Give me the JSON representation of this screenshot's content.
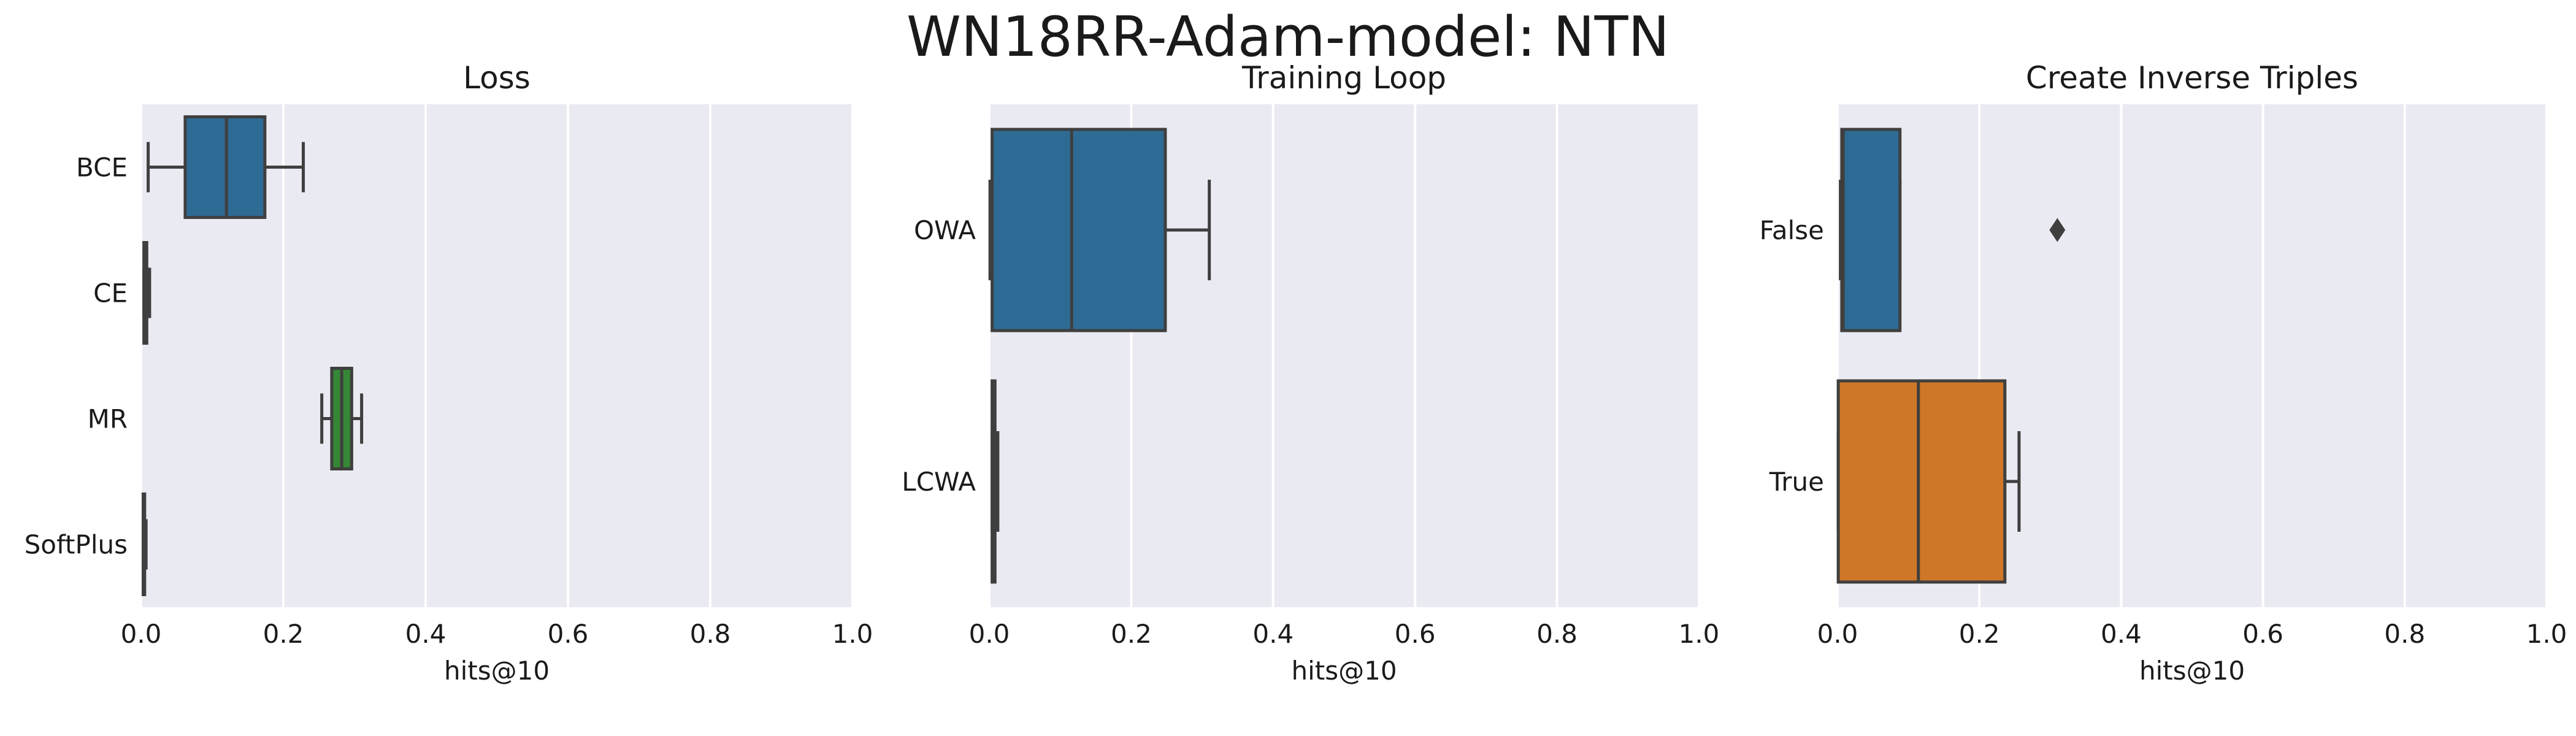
{
  "title": "WN18RR-Adam-model: NTN",
  "colors": {
    "background": "#eaeaf2",
    "grid": "#ffffff",
    "line": "#3f3f3f"
  },
  "chart_data": [
    {
      "type": "box",
      "orientation": "horizontal",
      "title": "Loss",
      "xlabel": "hits@10",
      "xlim": [
        0.0,
        1.0
      ],
      "xticks": [
        "0.0",
        "0.2",
        "0.4",
        "0.6",
        "0.8",
        "1.0"
      ],
      "categories": [
        "BCE",
        "CE",
        "MR",
        "SoftPlus"
      ],
      "boxes": [
        {
          "label": "BCE",
          "whisker_low": 0.01,
          "q1": 0.062,
          "median": 0.12,
          "q3": 0.174,
          "whisker_high": 0.228,
          "outliers": [],
          "color": "#3274a1"
        },
        {
          "label": "CE",
          "whisker_low": 0.004,
          "q1": 0.004,
          "median": 0.006,
          "q3": 0.008,
          "whisker_high": 0.012,
          "outliers": [],
          "color": "#e1812c"
        },
        {
          "label": "MR",
          "whisker_low": 0.254,
          "q1": 0.268,
          "median": 0.282,
          "q3": 0.296,
          "whisker_high": 0.31,
          "outliers": [],
          "color": "#3a923a"
        },
        {
          "label": "SoftPlus",
          "whisker_low": 0.003,
          "q1": 0.003,
          "median": 0.004,
          "q3": 0.005,
          "whisker_high": 0.007,
          "outliers": [],
          "color": "#c03d3e"
        }
      ]
    },
    {
      "type": "box",
      "orientation": "horizontal",
      "title": "Training Loop",
      "xlabel": "hits@10",
      "xlim": [
        0.0,
        1.0
      ],
      "xticks": [
        "0.0",
        "0.2",
        "0.4",
        "0.6",
        "0.8",
        "1.0"
      ],
      "categories": [
        "OWA",
        "LCWA"
      ],
      "boxes": [
        {
          "label": "OWA",
          "whisker_low": 0.001,
          "q1": 0.004,
          "median": 0.116,
          "q3": 0.248,
          "whisker_high": 0.31,
          "outliers": [],
          "color": "#3274a1"
        },
        {
          "label": "LCWA",
          "whisker_low": 0.004,
          "q1": 0.004,
          "median": 0.006,
          "q3": 0.008,
          "whisker_high": 0.012,
          "outliers": [],
          "color": "#e1812c"
        }
      ]
    },
    {
      "type": "box",
      "orientation": "horizontal",
      "title": "Create Inverse Triples",
      "xlabel": "hits@10",
      "xlim": [
        0.0,
        1.0
      ],
      "xticks": [
        "0.0",
        "0.2",
        "0.4",
        "0.6",
        "0.8",
        "1.0"
      ],
      "categories": [
        "False",
        "True"
      ],
      "boxes": [
        {
          "label": "False",
          "whisker_low": 0.004,
          "q1": 0.006,
          "median": 0.008,
          "q3": 0.088,
          "whisker_high": 0.088,
          "outliers": [
            0.31
          ],
          "color": "#3274a1"
        },
        {
          "label": "True",
          "whisker_low": 0.001,
          "q1": 0.001,
          "median": 0.114,
          "q3": 0.236,
          "whisker_high": 0.256,
          "outliers": [],
          "color": "#e1812c"
        }
      ]
    }
  ]
}
